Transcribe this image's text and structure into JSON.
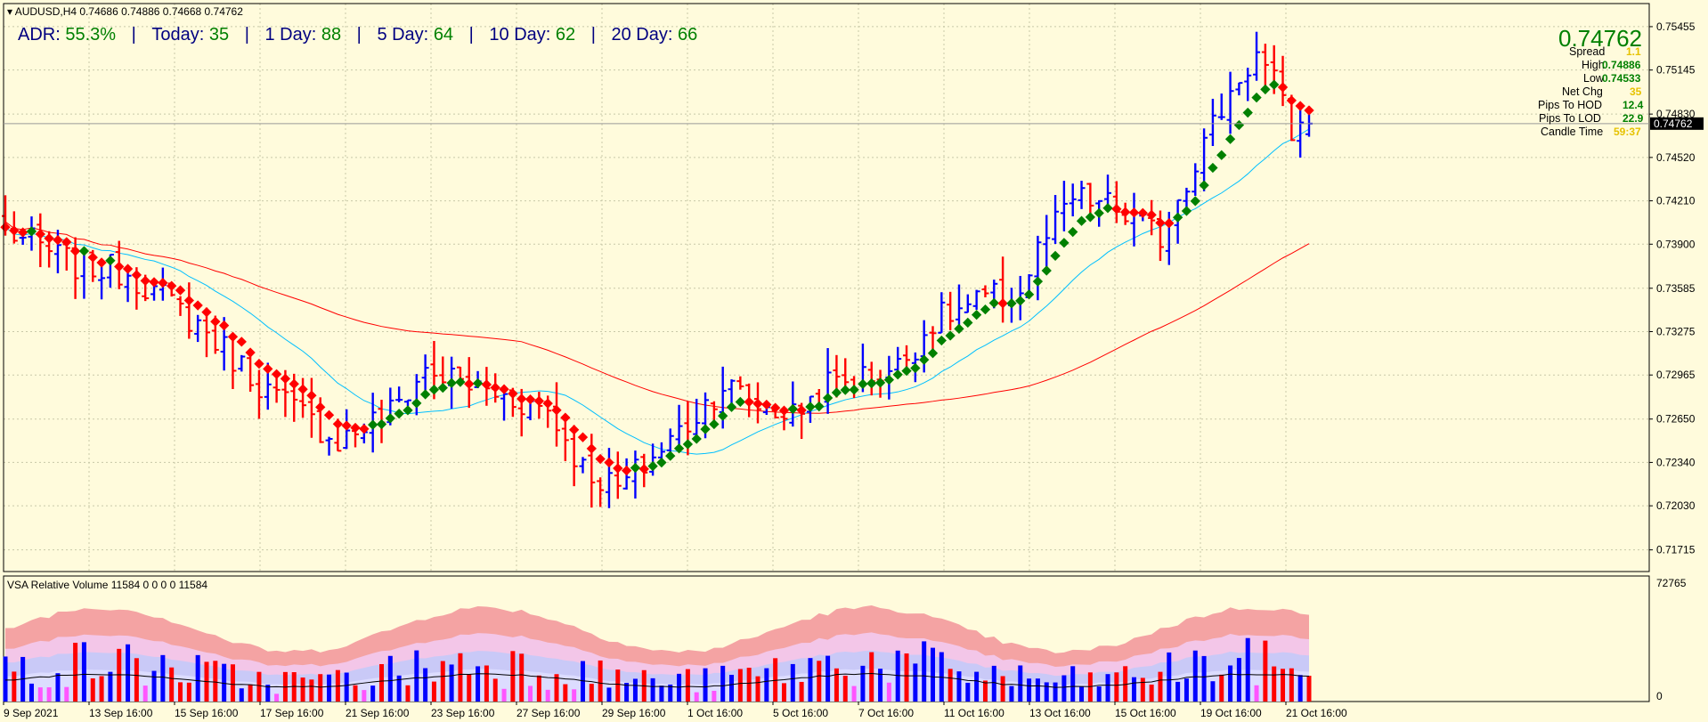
{
  "header": {
    "symbol_line": "AUDUSD,H4  0.74686 0.74886 0.74668 0.74762"
  },
  "adr": {
    "adr_label": "ADR:",
    "adr_value": "55.3%",
    "today_label": "Today:",
    "today_value": "35",
    "day1_label": "1 Day:",
    "day1_value": "88",
    "day5_label": "5 Day:",
    "day5_value": "64",
    "day10_label": "10 Day:",
    "day10_value": "62",
    "day20_label": "20 Day:",
    "day20_value": "66",
    "separator": "|"
  },
  "info_panel": {
    "price": "0.74762",
    "spread_label": "Spread",
    "spread_value": "1.1",
    "high_label": "High",
    "high_value": "0.74886",
    "low_label": "Low",
    "low_value": "0.74533",
    "netchg_label": "Net Chg",
    "netchg_value": "35",
    "hod_label": "Pips To HOD",
    "hod_value": "12.4",
    "lod_label": "Pips To LOD",
    "lod_value": "22.9",
    "candle_label": "Candle Time",
    "candle_value": "59:37"
  },
  "colors": {
    "background": "#fffbdc",
    "bull_bar": "#0000ff",
    "bear_bar": "#ff0000",
    "trend_up": "#008000",
    "trend_down": "#ff0000",
    "ma_fast": "#00bfff",
    "ma_slow": "#ff0000",
    "current_price_tag": "#000000"
  },
  "vsa": {
    "title": "VSA Relative Volume 11584 0 0 0 0 11584",
    "max_label": "72765",
    "min_label": "0"
  },
  "chart_data": {
    "type": "line",
    "title": "",
    "ylabel": "",
    "ylim": [
      0.7156,
      0.7562
    ],
    "grid": true,
    "y_ticks": [
      "0.75455",
      "0.75145",
      "0.74830",
      "0.74520",
      "0.74210",
      "0.73900",
      "0.73585",
      "0.73275",
      "0.72965",
      "0.72650",
      "0.72340",
      "0.72030",
      "0.71715"
    ],
    "current_price_label": "0.74762",
    "x_ticks": [
      "9 Sep 2021",
      "13 Sep 16:00",
      "15 Sep 16:00",
      "17 Sep 16:00",
      "21 Sep 16:00",
      "23 Sep 16:00",
      "27 Sep 16:00",
      "29 Sep 16:00",
      "1 Oct 16:00",
      "5 Oct 16:00",
      "7 Oct 16:00",
      "11 Oct 16:00",
      "13 Oct 16:00",
      "15 Oct 16:00",
      "19 Oct 16:00",
      "21 Oct 16:00"
    ],
    "bar_count": 150,
    "close_anchors": [
      [
        0,
        0.74
      ],
      [
        8,
        0.7375
      ],
      [
        14,
        0.737
      ],
      [
        22,
        0.7333
      ],
      [
        30,
        0.7285
      ],
      [
        38,
        0.725
      ],
      [
        44,
        0.727
      ],
      [
        48,
        0.73
      ],
      [
        55,
        0.7285
      ],
      [
        62,
        0.7272
      ],
      [
        66,
        0.723
      ],
      [
        70,
        0.7215
      ],
      [
        74,
        0.7238
      ],
      [
        78,
        0.7262
      ],
      [
        82,
        0.729
      ],
      [
        86,
        0.7275
      ],
      [
        90,
        0.7268
      ],
      [
        94,
        0.729
      ],
      [
        98,
        0.7295
      ],
      [
        102,
        0.7302
      ],
      [
        106,
        0.7335
      ],
      [
        112,
        0.735
      ],
      [
        116,
        0.7355
      ],
      [
        118,
        0.7385
      ],
      [
        122,
        0.7422
      ],
      [
        126,
        0.7418
      ],
      [
        128,
        0.741
      ],
      [
        132,
        0.7395
      ],
      [
        134,
        0.7425
      ],
      [
        138,
        0.7475
      ],
      [
        141,
        0.751
      ],
      [
        143,
        0.7525
      ],
      [
        145,
        0.7505
      ],
      [
        147,
        0.747
      ],
      [
        149,
        0.7476
      ]
    ],
    "open": 0.74686,
    "high": 0.74886,
    "low": 0.74668,
    "close": 0.74762,
    "vsa_max": 72765,
    "vsa_min": 0
  }
}
